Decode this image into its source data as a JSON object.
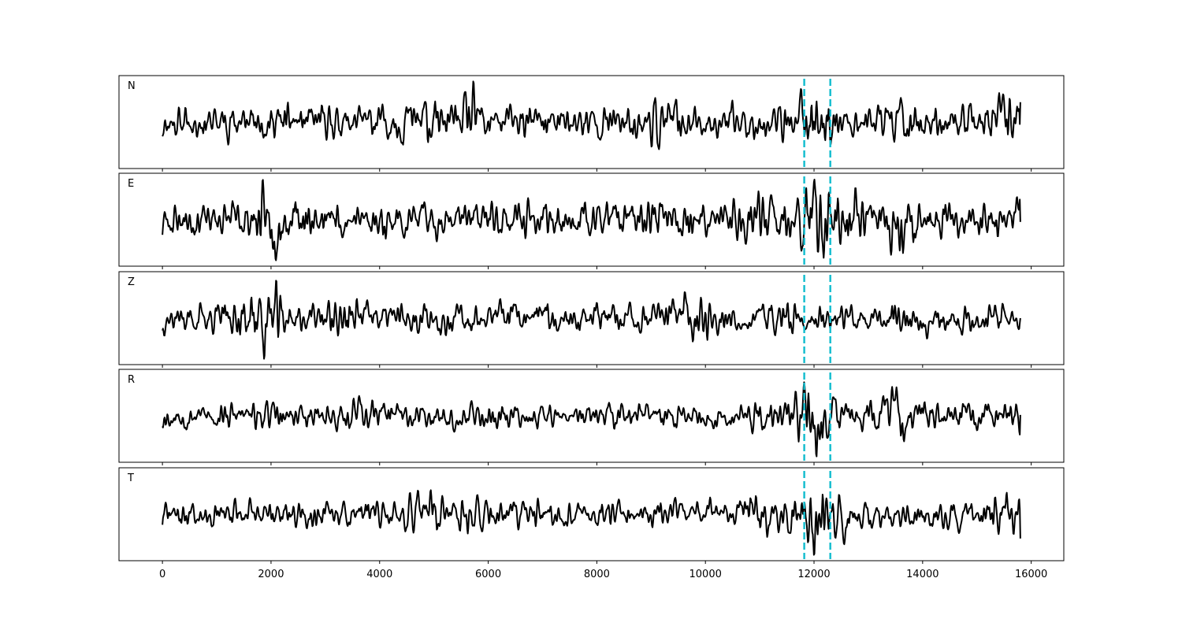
{
  "chart_data": {
    "type": "line",
    "x_range": [
      0,
      15800
    ],
    "xlim": [
      -800,
      16600
    ],
    "x_ticks": [
      0,
      2000,
      4000,
      6000,
      8000,
      10000,
      12000,
      14000,
      16000
    ],
    "x_tick_labels": [
      "0",
      "2000",
      "4000",
      "6000",
      "8000",
      "10000",
      "12000",
      "14000",
      "16000"
    ],
    "markers": {
      "positions": [
        11820,
        12300
      ],
      "style": "dashed",
      "color": "#17becf"
    },
    "trace_color": "#000000",
    "panels": [
      {
        "name": "N",
        "events": [
          [
            4700,
            0.8
          ],
          [
            5700,
            1.0
          ],
          [
            9200,
            0.6
          ],
          [
            12000,
            1.9
          ],
          [
            13500,
            0.8
          ],
          [
            15500,
            0.9
          ]
        ],
        "seed": 11,
        "ylim": [
          -1.0,
          1.0
        ],
        "end_value": 0.45
      },
      {
        "name": "E",
        "events": [
          [
            2000,
            1.0
          ],
          [
            11000,
            0.9
          ],
          [
            12000,
            2.0
          ],
          [
            12800,
            0.7
          ],
          [
            13500,
            1.0
          ]
        ],
        "seed": 23,
        "ylim": [
          -1.0,
          1.0
        ],
        "end_value": -0.05
      },
      {
        "name": "Z",
        "events": [
          [
            1900,
            2.2
          ],
          [
            3350,
            0.8
          ],
          [
            9750,
            0.9
          ],
          [
            11500,
            0.5
          ]
        ],
        "seed": 37,
        "ylim": [
          -1.0,
          1.0
        ],
        "end_value": 0.0
      },
      {
        "name": "R",
        "events": [
          [
            3700,
            0.8
          ],
          [
            10950,
            0.9
          ],
          [
            12000,
            2.3
          ],
          [
            13450,
            1.3
          ],
          [
            14150,
            0.8
          ]
        ],
        "seed": 53,
        "ylim": [
          -1.0,
          1.0
        ],
        "end_value": 0.02
      },
      {
        "name": "T",
        "events": [
          [
            4800,
            0.8
          ],
          [
            5700,
            1.0
          ],
          [
            11000,
            0.9
          ],
          [
            12000,
            2.1
          ],
          [
            12500,
            0.7
          ],
          [
            15650,
            0.8
          ]
        ],
        "seed": 71,
        "ylim": [
          -1.0,
          1.0
        ],
        "end_value": -0.55
      }
    ]
  }
}
